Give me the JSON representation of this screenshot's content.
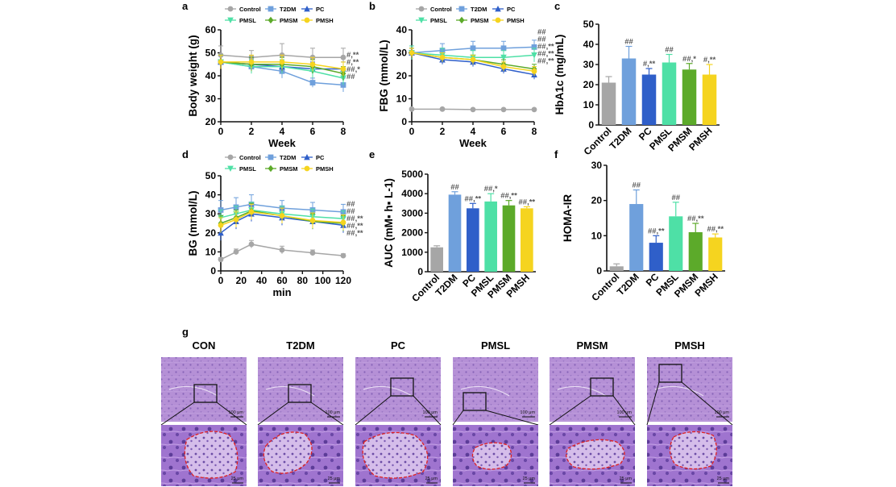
{
  "panels": [
    {
      "letter": "a"
    },
    {
      "letter": "b"
    },
    {
      "letter": "c"
    },
    {
      "letter": "d"
    },
    {
      "letter": "e"
    },
    {
      "letter": "f"
    },
    {
      "letter": "g"
    }
  ],
  "colors": {
    "Control": "#a6a6a6",
    "T2DM": "#6fa0dc",
    "PC": "#2f5fc9",
    "PMSL": "#4ee0a6",
    "PMSM": "#5caa2a",
    "PMSH": "#f5d41f",
    "tissue": "#b58ed3",
    "islet_outline": "#e02020"
  },
  "line_legend": [
    {
      "label": "Control",
      "marker": "circle",
      "color_key": "Control"
    },
    {
      "label": "T2DM",
      "marker": "square",
      "color_key": "T2DM"
    },
    {
      "label": "PC",
      "marker": "triangle",
      "color_key": "PC"
    },
    {
      "label": "PMSL",
      "marker": "down-triangle",
      "color_key": "PMSL"
    },
    {
      "label": "PMSM",
      "marker": "diamond",
      "color_key": "PMSM"
    },
    {
      "label": "PMSH",
      "marker": "circle",
      "color_key": "PMSH"
    }
  ],
  "chart_data": [
    {
      "panel": "a",
      "type": "line",
      "xlabel": "Week",
      "ylabel": "Body weight (g)",
      "x": [
        0,
        2,
        4,
        6,
        8
      ],
      "xticks": [
        "0",
        "2",
        "4",
        "6",
        "8"
      ],
      "yticks": [
        "20",
        "30",
        "40",
        "50",
        "60"
      ],
      "xlim": [
        0,
        8
      ],
      "ylim": [
        20,
        60
      ],
      "series": [
        {
          "name": "Control",
          "values": [
            49,
            48,
            49,
            48,
            48
          ],
          "err": [
            4,
            3,
            5,
            4,
            4
          ]
        },
        {
          "name": "T2DM",
          "values": [
            46,
            44,
            42,
            37,
            36
          ],
          "err": [
            3,
            3,
            3,
            2,
            3
          ]
        },
        {
          "name": "PC",
          "values": [
            46,
            45,
            44,
            43,
            43
          ],
          "err": [
            3,
            3,
            3,
            3,
            3
          ]
        },
        {
          "name": "PMSL",
          "values": [
            46,
            44,
            44,
            42,
            39
          ],
          "err": [
            3,
            3,
            3,
            3,
            3
          ]
        },
        {
          "name": "PMSM",
          "values": [
            46,
            45,
            45,
            44,
            41
          ],
          "err": [
            3,
            3,
            3,
            3,
            3
          ]
        },
        {
          "name": "PMSH",
          "values": [
            46,
            46,
            46,
            45,
            43
          ],
          "err": [
            3,
            3,
            3,
            3,
            3
          ]
        }
      ],
      "end_annotations": [
        "#,**",
        "#,**",
        "##,*",
        "##"
      ]
    },
    {
      "panel": "b",
      "type": "line",
      "xlabel": "Week",
      "ylabel": "FBG (mmol/L)",
      "x": [
        0,
        2,
        4,
        6,
        8
      ],
      "xticks": [
        "0",
        "2",
        "4",
        "6",
        "8"
      ],
      "yticks": [
        "0",
        "10",
        "20",
        "30",
        "40"
      ],
      "xlim": [
        0,
        8
      ],
      "ylim": [
        0,
        40
      ],
      "series": [
        {
          "name": "Control",
          "values": [
            5.5,
            5.5,
            5.3,
            5.3,
            5.3
          ],
          "err": [
            0.4,
            0.4,
            0.4,
            0.4,
            0.4
          ]
        },
        {
          "name": "T2DM",
          "values": [
            30,
            31,
            32,
            32,
            32.5
          ],
          "err": [
            3,
            3,
            3,
            3,
            3
          ]
        },
        {
          "name": "PC",
          "values": [
            30,
            27,
            26,
            23,
            20.5
          ],
          "err": [
            2,
            2,
            2,
            2,
            2
          ]
        },
        {
          "name": "PMSL",
          "values": [
            30,
            29,
            28,
            28,
            29
          ],
          "err": [
            3,
            3,
            3,
            3,
            3
          ]
        },
        {
          "name": "PMSM",
          "values": [
            30,
            28,
            27,
            25,
            23
          ],
          "err": [
            2,
            2,
            2,
            2,
            2
          ]
        },
        {
          "name": "PMSH",
          "values": [
            30,
            28,
            27,
            24,
            22
          ],
          "err": [
            2,
            2,
            2,
            2,
            2
          ]
        }
      ],
      "end_annotations": [
        "##",
        "##",
        "##,**",
        "##,**",
        "##,**"
      ]
    },
    {
      "panel": "c",
      "type": "bar",
      "ylabel": "HbA1c (mg/mL)",
      "categories": [
        "Control",
        "T2DM",
        "PC",
        "PMSL",
        "PMSM",
        "PMSH"
      ],
      "values": [
        21,
        33,
        25,
        31,
        27.5,
        25
      ],
      "err": [
        3,
        6,
        3,
        4,
        3,
        5
      ],
      "annotations": [
        "",
        "##",
        "#,**",
        "##",
        "##,*",
        "#,**"
      ],
      "yticks": [
        "0",
        "10",
        "20",
        "30",
        "40",
        "50"
      ],
      "ylim": [
        0,
        50
      ]
    },
    {
      "panel": "d",
      "type": "line",
      "xlabel": "min",
      "ylabel": "BG (mmol/L)",
      "x": [
        0,
        15,
        30,
        60,
        90,
        120
      ],
      "xticks": [
        "0",
        "20",
        "40",
        "60",
        "80",
        "100",
        "120"
      ],
      "yticks": [
        "0",
        "10",
        "20",
        "30",
        "40",
        "50"
      ],
      "xlim": [
        0,
        120
      ],
      "ylim": [
        0,
        50
      ],
      "series": [
        {
          "name": "Control",
          "values": [
            6,
            10,
            14,
            11,
            9.5,
            8
          ],
          "err": [
            1,
            1.5,
            2,
            2,
            1.5,
            1
          ]
        },
        {
          "name": "T2DM",
          "values": [
            32,
            33.5,
            35,
            33,
            32,
            31
          ],
          "err": [
            5,
            5,
            5,
            4,
            4,
            4
          ]
        },
        {
          "name": "PC",
          "values": [
            20,
            26,
            30,
            28,
            26,
            24
          ],
          "err": [
            4,
            4,
            4,
            4,
            4,
            4
          ]
        },
        {
          "name": "PMSL",
          "values": [
            28,
            30,
            32,
            30,
            28.5,
            27.5
          ],
          "err": [
            4,
            4,
            4,
            4,
            4,
            4
          ]
        },
        {
          "name": "PMSM",
          "values": [
            25,
            28,
            31.5,
            29,
            26,
            25
          ],
          "err": [
            4,
            4,
            4,
            4,
            4,
            4
          ]
        },
        {
          "name": "PMSH",
          "values": [
            24,
            27,
            31,
            29,
            26.5,
            25.5
          ],
          "err": [
            4,
            4,
            4,
            4,
            4,
            4
          ]
        }
      ],
      "end_annotations": [
        "##",
        "##",
        "##,**",
        "##,**",
        "##,**"
      ]
    },
    {
      "panel": "e",
      "type": "bar",
      "ylabel": "AUC (mM▪ h▪ L-1)",
      "categories": [
        "Control",
        "T2DM",
        "PC",
        "PMSL",
        "PMSM",
        "PMSH"
      ],
      "values": [
        1250,
        3950,
        3250,
        3600,
        3400,
        3250
      ],
      "err": [
        80,
        150,
        250,
        400,
        250,
        80
      ],
      "annotations": [
        "",
        "##",
        "##,**",
        "##,*",
        "##,**",
        "##,**"
      ],
      "yticks": [
        "0",
        "1000",
        "2000",
        "3000",
        "4000",
        "5000"
      ],
      "ylim": [
        0,
        5000
      ]
    },
    {
      "panel": "f",
      "type": "bar",
      "ylabel": "HOMA-IR",
      "categories": [
        "Control",
        "T2DM",
        "PC",
        "PMSL",
        "PMSM",
        "PMSH"
      ],
      "values": [
        1.3,
        19,
        8,
        15.5,
        11,
        9.5
      ],
      "err": [
        0.7,
        4,
        2,
        4,
        2.5,
        1
      ],
      "annotations": [
        "",
        "##",
        "##,**",
        "##",
        "##,**",
        "##,**"
      ],
      "yticks": [
        "0",
        "10",
        "20",
        "30"
      ],
      "ylim": [
        0,
        30
      ]
    }
  ],
  "histology": {
    "groups": [
      "CON",
      "T2DM",
      "PC",
      "PMSL",
      "PMSM",
      "PMSH"
    ],
    "scale_top": "100 μm",
    "scale_bottom": "25 μm"
  }
}
